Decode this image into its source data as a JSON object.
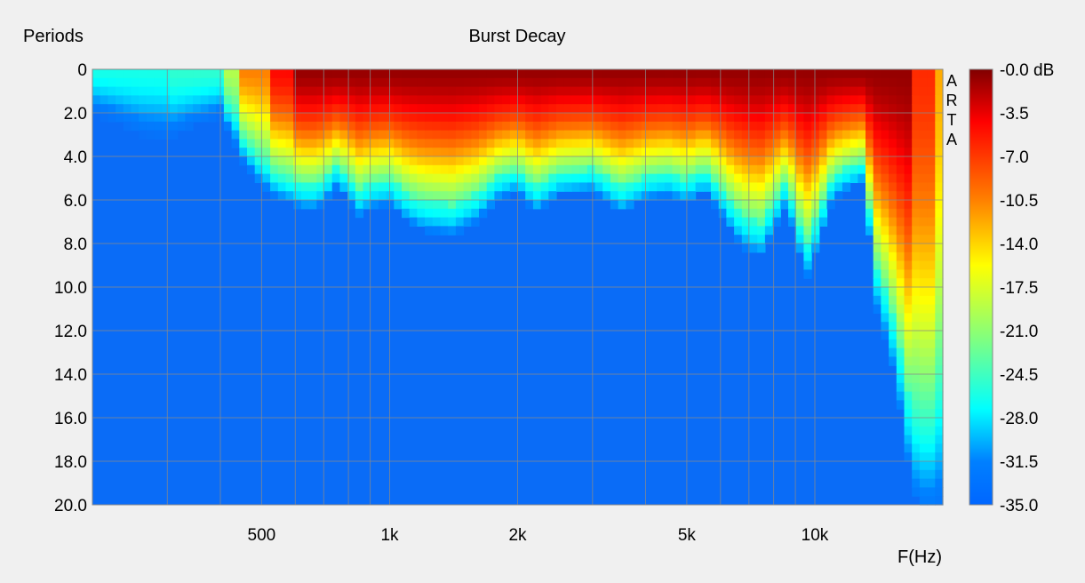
{
  "chart_data": {
    "type": "heatmap",
    "title": "Burst Decay",
    "ylabel": "Periods",
    "xlabel": "F(Hz)",
    "x_scale": "log",
    "xlim": [
      200,
      20000
    ],
    "ylim": [
      0,
      20
    ],
    "y_reversed": true,
    "x_ticks": [
      {
        "value": 500,
        "label": "500"
      },
      {
        "value": 1000,
        "label": "1k"
      },
      {
        "value": 2000,
        "label": "2k"
      },
      {
        "value": 5000,
        "label": "5k"
      },
      {
        "value": 10000,
        "label": "10k"
      }
    ],
    "x_minor_grid": [
      300,
      400,
      600,
      700,
      800,
      900,
      3000,
      4000,
      6000,
      7000,
      8000,
      9000
    ],
    "y_ticks": [
      "0",
      "2.0",
      "4.0",
      "6.0",
      "8.0",
      "10.0",
      "12.0",
      "14.0",
      "16.0",
      "18.0",
      "20.0"
    ],
    "colorbar": {
      "labels": [
        "-0.0 dB",
        "-3.5",
        "-7.0",
        "-10.5",
        "-14.0",
        "-17.5",
        "-21.0",
        "-24.5",
        "-28.0",
        "-31.5",
        "-35.0"
      ],
      "range_db": [
        0,
        -35
      ]
    },
    "watermark": "ARTA",
    "grid": true,
    "decay_profile_description_free": [
      [
        200,
        2.0
      ],
      [
        230,
        2.5
      ],
      [
        260,
        3.0
      ],
      [
        300,
        3.2
      ],
      [
        350,
        2.6
      ],
      [
        400,
        2.2
      ],
      [
        450,
        4.2
      ],
      [
        500,
        5.5
      ],
      [
        550,
        6.0
      ],
      [
        600,
        6.3
      ],
      [
        650,
        6.5
      ],
      [
        700,
        6.2
      ],
      [
        750,
        5.4
      ],
      [
        800,
        6.0
      ],
      [
        850,
        6.8
      ],
      [
        900,
        6.4
      ],
      [
        1000,
        6.2
      ],
      [
        1100,
        7.0
      ],
      [
        1200,
        7.4
      ],
      [
        1400,
        7.6
      ],
      [
        1600,
        7.0
      ],
      [
        1800,
        6.0
      ],
      [
        2000,
        5.6
      ],
      [
        2200,
        6.6
      ],
      [
        2500,
        5.8
      ],
      [
        3000,
        5.6
      ],
      [
        3500,
        6.6
      ],
      [
        4000,
        6.0
      ],
      [
        4500,
        5.8
      ],
      [
        5000,
        6.2
      ],
      [
        5500,
        5.6
      ],
      [
        6000,
        6.6
      ],
      [
        6500,
        7.8
      ],
      [
        7000,
        8.4
      ],
      [
        7500,
        8.6
      ],
      [
        8000,
        7.4
      ],
      [
        8500,
        6.4
      ],
      [
        9000,
        7.6
      ],
      [
        9500,
        9.8
      ],
      [
        10000,
        8.6
      ],
      [
        11000,
        6.0
      ],
      [
        12000,
        5.5
      ],
      [
        13000,
        5.2
      ],
      [
        14000,
        11.0
      ],
      [
        15000,
        13.0
      ],
      [
        16000,
        16.0
      ],
      [
        17000,
        19.5
      ],
      [
        18000,
        20.0
      ],
      [
        19000,
        20.0
      ],
      [
        20000,
        20.0
      ]
    ]
  }
}
